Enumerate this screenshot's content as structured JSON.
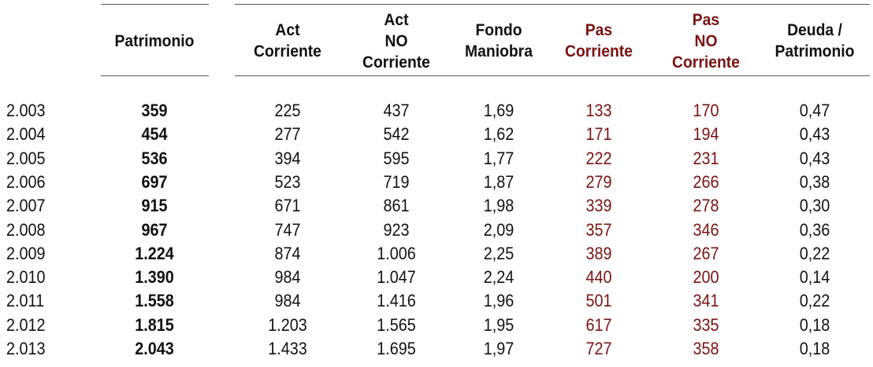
{
  "headers": {
    "patrimonio": "Patrimonio",
    "act_corriente": "Act\nCorriente",
    "act_no_corriente": "Act\nNO\nCorriente",
    "fondo_maniobra": "Fondo\nManiobra",
    "pas_corriente": "Pas\nCorriente",
    "pas_no_corriente": "Pas\nNO\nCorriente",
    "deuda_patrimonio": "Deuda /\nPatrimonio"
  },
  "colors": {
    "text": "#111111",
    "pasivo": "#7a1212",
    "rule": "#555555"
  },
  "rows": [
    {
      "year": "2.003",
      "patrimonio": "359",
      "act_corriente": "225",
      "act_no_corriente": "437",
      "fondo_maniobra": "1,69",
      "pas_corriente": "133",
      "pas_no_corriente": "170",
      "deuda_patrimonio": "0,47"
    },
    {
      "year": "2.004",
      "patrimonio": "454",
      "act_corriente": "277",
      "act_no_corriente": "542",
      "fondo_maniobra": "1,62",
      "pas_corriente": "171",
      "pas_no_corriente": "194",
      "deuda_patrimonio": "0,43"
    },
    {
      "year": "2.005",
      "patrimonio": "536",
      "act_corriente": "394",
      "act_no_corriente": "595",
      "fondo_maniobra": "1,77",
      "pas_corriente": "222",
      "pas_no_corriente": "231",
      "deuda_patrimonio": "0,43"
    },
    {
      "year": "2.006",
      "patrimonio": "697",
      "act_corriente": "523",
      "act_no_corriente": "719",
      "fondo_maniobra": "1,87",
      "pas_corriente": "279",
      "pas_no_corriente": "266",
      "deuda_patrimonio": "0,38"
    },
    {
      "year": "2.007",
      "patrimonio": "915",
      "act_corriente": "671",
      "act_no_corriente": "861",
      "fondo_maniobra": "1,98",
      "pas_corriente": "339",
      "pas_no_corriente": "278",
      "deuda_patrimonio": "0,30"
    },
    {
      "year": "2.008",
      "patrimonio": "967",
      "act_corriente": "747",
      "act_no_corriente": "923",
      "fondo_maniobra": "2,09",
      "pas_corriente": "357",
      "pas_no_corriente": "346",
      "deuda_patrimonio": "0,36"
    },
    {
      "year": "2.009",
      "patrimonio": "1.224",
      "act_corriente": "874",
      "act_no_corriente": "1.006",
      "fondo_maniobra": "2,25",
      "pas_corriente": "389",
      "pas_no_corriente": "267",
      "deuda_patrimonio": "0,22"
    },
    {
      "year": "2.010",
      "patrimonio": "1.390",
      "act_corriente": "984",
      "act_no_corriente": "1.047",
      "fondo_maniobra": "2,24",
      "pas_corriente": "440",
      "pas_no_corriente": "200",
      "deuda_patrimonio": "0,14"
    },
    {
      "year": "2.011",
      "patrimonio": "1.558",
      "act_corriente": "984",
      "act_no_corriente": "1.416",
      "fondo_maniobra": "1,96",
      "pas_corriente": "501",
      "pas_no_corriente": "341",
      "deuda_patrimonio": "0,22"
    },
    {
      "year": "2.012",
      "patrimonio": "1.815",
      "act_corriente": "1.203",
      "act_no_corriente": "1.565",
      "fondo_maniobra": "1,95",
      "pas_corriente": "617",
      "pas_no_corriente": "335",
      "deuda_patrimonio": "0,18"
    },
    {
      "year": "2.013",
      "patrimonio": "2.043",
      "act_corriente": "1.433",
      "act_no_corriente": "1.695",
      "fondo_maniobra": "1,97",
      "pas_corriente": "727",
      "pas_no_corriente": "358",
      "deuda_patrimonio": "0,18"
    }
  ]
}
